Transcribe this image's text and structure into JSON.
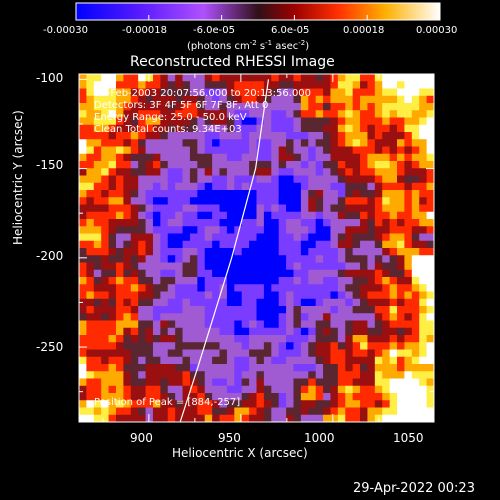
{
  "colorbar": {
    "ticks": [
      "-0.00030",
      "-0.00018",
      "-6.0e-05",
      "6.0e-05",
      "0.00018",
      "0.00030"
    ],
    "units_text": "(photons cm",
    "units_exp1": "-2",
    "units_s": " s",
    "units_exp2": "-1",
    "units_asec": " asec",
    "units_exp3": "-2",
    "units_close": ")"
  },
  "title": "Reconstructed RHESSI Image",
  "info": {
    "time_range": "15-Feb-2003 20:07:56.000 to 20:13:56.000",
    "detectors": "Detectors: 3F 4F 5F 6F 7F 8F, Att 0",
    "energy": "Energy Range: 25.0 - 50.0 keV",
    "method": "Clean     Total counts: 9.34E+03",
    "peak": "Position of Peak = [884,-257]"
  },
  "footer_date": "29-Apr-2022 00:23",
  "chart_data": {
    "type": "heatmap",
    "title": "Reconstructed RHESSI Image",
    "xlabel": "Heliocentric X (arcsec)",
    "ylabel": "Heliocentric Y (arcsec)",
    "xlim": [
      862,
      1055
    ],
    "ylim": [
      -292,
      -97
    ],
    "xticks": [
      900,
      950,
      1000,
      1050
    ],
    "yticks": [
      -100,
      -150,
      -200,
      -250
    ],
    "colorbar_range": [
      -0.0003,
      0.0003
    ],
    "colorscale": [
      "#0000ff",
      "#7a3cff",
      "#a05ad2",
      "#5a2632",
      "#9a1010",
      "#ff2a00",
      "#ffaa00",
      "#ffee44",
      "#ffffff"
    ],
    "limb_curve": [
      [
        965,
        -100
      ],
      [
        958,
        -150
      ],
      [
        945,
        -200
      ],
      [
        927,
        -260
      ],
      [
        917,
        -292
      ]
    ],
    "peak_position": [
      884,
      -257
    ]
  }
}
